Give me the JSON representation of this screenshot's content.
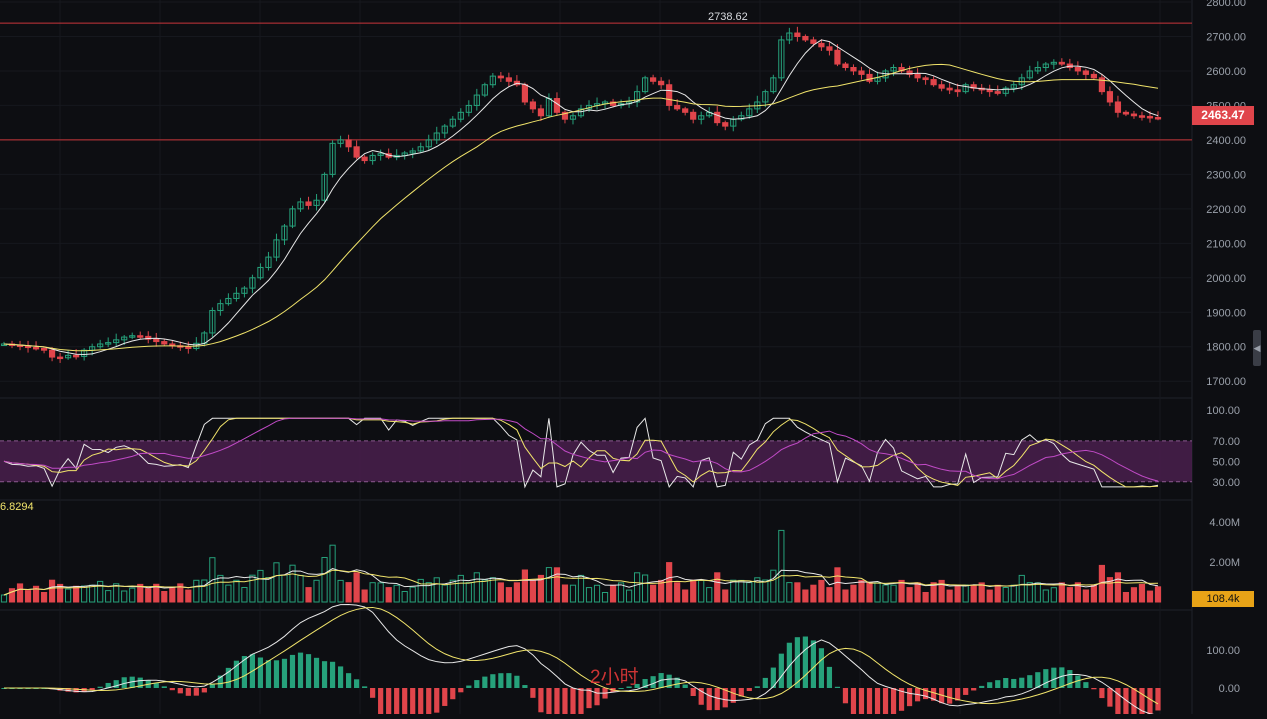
{
  "chart_data": {
    "type": "candlestick",
    "interval": "2小时",
    "price_axis": {
      "ticks": [
        "2800.00",
        "2700.00",
        "2600.00",
        "2500.00",
        "2400.00",
        "2300.00",
        "2200.00",
        "2100.00",
        "2000.00",
        "1900.00",
        "1800.00",
        "1700.00"
      ],
      "ylim": [
        1660,
        2800
      ]
    },
    "current_price": "2463.47",
    "high_annotation": "2738.62",
    "horizontal_levels": [
      2738.62,
      2400
    ],
    "candles_approx": [
      1808,
      1805,
      1802,
      1798,
      1795,
      1790,
      1770,
      1768,
      1775,
      1772,
      1790,
      1800,
      1808,
      1812,
      1820,
      1828,
      1832,
      1830,
      1822,
      1815,
      1808,
      1803,
      1800,
      1795,
      1810,
      1840,
      1905,
      1925,
      1940,
      1955,
      1970,
      2000,
      2030,
      2060,
      2110,
      2150,
      2200,
      2220,
      2210,
      2225,
      2300,
      2390,
      2400,
      2380,
      2350,
      2340,
      2355,
      2360,
      2350,
      2355,
      2362,
      2368,
      2380,
      2400,
      2420,
      2440,
      2460,
      2480,
      2500,
      2530,
      2560,
      2585,
      2580,
      2570,
      2560,
      2510,
      2490,
      2470,
      2520,
      2480,
      2460,
      2470,
      2490,
      2500,
      2505,
      2510,
      2500,
      2505,
      2510,
      2540,
      2580,
      2570,
      2560,
      2500,
      2490,
      2480,
      2460,
      2470,
      2480,
      2450,
      2440,
      2460,
      2470,
      2490,
      2510,
      2540,
      2580,
      2690,
      2710,
      2700,
      2690,
      2680,
      2670,
      2660,
      2620,
      2610,
      2600,
      2590,
      2570,
      2580,
      2600,
      2610,
      2600,
      2590,
      2580,
      2575,
      2560,
      2550,
      2545,
      2540,
      2560,
      2550,
      2545,
      2540,
      2535,
      2550,
      2560,
      2580,
      2600,
      2610,
      2620,
      2625,
      2620,
      2610,
      2600,
      2590,
      2580,
      2540,
      2510,
      2480,
      2475,
      2470,
      2468,
      2465,
      2463
    ],
    "indicators": {
      "rsi": {
        "value": "6.8294",
        "ticks": [
          "100.00",
          "70.00",
          "50.00",
          "30.00"
        ],
        "band": [
          30,
          70
        ]
      },
      "volume": {
        "ticks": [
          "4.00M",
          "2.00M"
        ],
        "current": "108.4k"
      },
      "macd": {
        "ticks": [
          "100.00",
          "0.00"
        ]
      }
    },
    "colors": {
      "up": "#26a17b",
      "down": "#e0454b",
      "ma_fast": "#e8e8e8",
      "ma_slow": "#f1e46b",
      "rsi_band": "#4a1f4e"
    }
  }
}
